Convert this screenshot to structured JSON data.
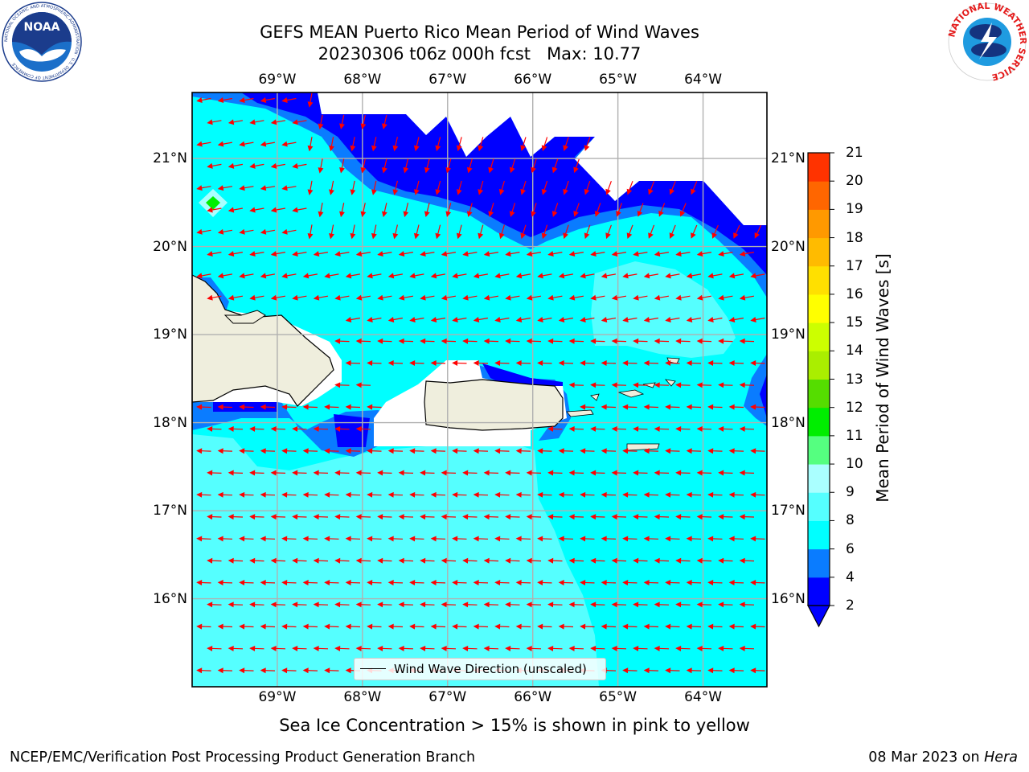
{
  "header": {
    "title_line1": "GEFS MEAN Puerto Rico Mean Period of Wind Waves",
    "title_line2": "20230306 t06z 000h fcst   Max: 10.77"
  },
  "logos": {
    "left": "NOAA",
    "left_ring": "NATIONAL OCEANIC AND ATMOSPHERIC ADMINISTRATION · U.S. DEPARTMENT OF COMMERCE",
    "right_ring": "NATIONAL WEATHER SERVICE"
  },
  "map": {
    "lon_labels": [
      "69°W",
      "68°W",
      "67°W",
      "66°W",
      "65°W",
      "64°W"
    ],
    "lat_labels": [
      "21°N",
      "20°N",
      "19°N",
      "18°N",
      "17°N",
      "16°N"
    ],
    "lon_values": [
      -69,
      -68,
      -67,
      -66,
      -65,
      -64
    ],
    "lat_values": [
      21,
      20,
      19,
      18,
      17,
      16
    ],
    "lon_range": [
      -70,
      -63.25
    ],
    "lat_range": [
      15,
      21.75
    ],
    "grid": true,
    "arrow_color": "#ff0000",
    "land_color": "#efeedd"
  },
  "colorbar": {
    "title": "Mean Period of Wind Waves [s]",
    "ticks": [
      "21",
      "20",
      "19",
      "18",
      "17",
      "16",
      "15",
      "14",
      "13",
      "12",
      "11",
      "10",
      "9",
      "8",
      "6",
      "4",
      "2"
    ],
    "levels": [
      2,
      4,
      6,
      8,
      9,
      10,
      11,
      12,
      13,
      14,
      15,
      16,
      17,
      18,
      19,
      20,
      21
    ],
    "colors": [
      "#0000ff",
      "#0a7cff",
      "#00ffff",
      "#55ffff",
      "#aaffff",
      "#55ff80",
      "#00ee00",
      "#55dd00",
      "#aaee00",
      "#ccff00",
      "#ffff00",
      "#ffe000",
      "#ffbb00",
      "#ff9900",
      "#ff6600",
      "#ff3300",
      "#ff0000"
    ],
    "under_color": "#0000ff"
  },
  "legend": {
    "label": "Wind Wave Direction (unscaled)"
  },
  "footnote": "Sea Ice Concentration > 15% is shown in pink to yellow",
  "footer": {
    "left": "NCEP/EMC/Verification Post Processing Product Generation Branch",
    "right_prefix": "08 Mar 2023 on ",
    "right_machine": "Hera"
  }
}
